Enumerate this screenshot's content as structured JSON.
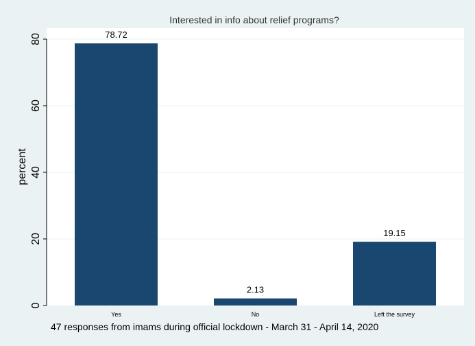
{
  "chart_data": {
    "type": "bar",
    "title": "Interested in info about relief programs?",
    "ylabel": "percent",
    "xlabel": "",
    "categories": [
      "Yes",
      "No",
      "Left the survey"
    ],
    "values": [
      78.72,
      2.13,
      19.15
    ],
    "value_labels": [
      "78.72",
      "2.13",
      "19.15"
    ],
    "ylim": [
      0,
      80
    ],
    "yticks": [
      0,
      20,
      40,
      60,
      80
    ],
    "grid": true,
    "note": "47 responses from imams during official lockdown - March 31 - April 14, 2020"
  },
  "colors": {
    "background": "#eaf2f3",
    "plot_area": "#ffffff",
    "bar": "#1a476f",
    "grid": "#eaf2f3",
    "axis": "#000000"
  }
}
